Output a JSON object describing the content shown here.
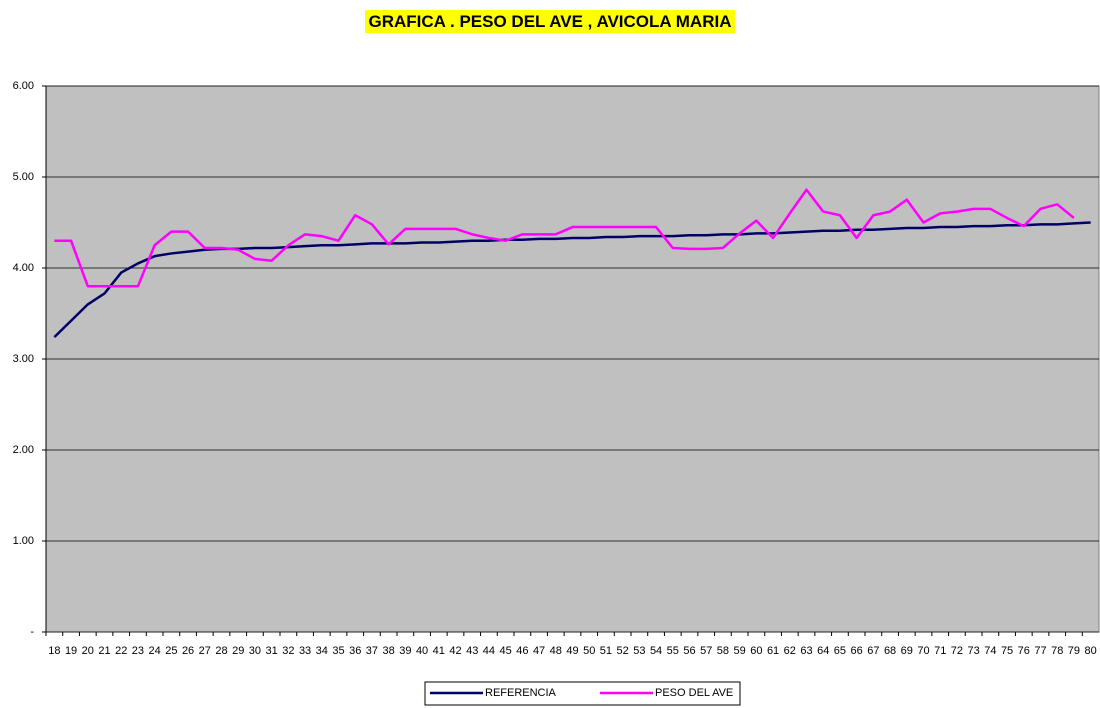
{
  "chart_data": {
    "type": "line",
    "title": "GRAFICA . PESO DEL AVE , AVICOLA MARIA",
    "categories": [
      "18",
      "19",
      "20",
      "21",
      "22",
      "23",
      "24",
      "25",
      "26",
      "27",
      "28",
      "29",
      "30",
      "31",
      "32",
      "33",
      "34",
      "35",
      "36",
      "37",
      "38",
      "39",
      "40",
      "41",
      "42",
      "43",
      "44",
      "45",
      "46",
      "47",
      "48",
      "49",
      "50",
      "51",
      "52",
      "53",
      "54",
      "55",
      "56",
      "57",
      "58",
      "59",
      "60",
      "61",
      "62",
      "63",
      "64",
      "65",
      "66",
      "67",
      "68",
      "69",
      "70",
      "71",
      "72",
      "73",
      "74",
      "75",
      "76",
      "77",
      "78",
      "79",
      "80"
    ],
    "series": [
      {
        "name": "REFERENCIA",
        "color": "#000066",
        "values": [
          3.24,
          3.42,
          3.6,
          3.72,
          3.95,
          4.05,
          4.13,
          4.16,
          4.18,
          4.2,
          4.21,
          4.21,
          4.22,
          4.22,
          4.23,
          4.24,
          4.25,
          4.25,
          4.26,
          4.27,
          4.27,
          4.27,
          4.28,
          4.28,
          4.29,
          4.3,
          4.3,
          4.31,
          4.31,
          4.32,
          4.32,
          4.33,
          4.33,
          4.34,
          4.34,
          4.35,
          4.35,
          4.35,
          4.36,
          4.36,
          4.37,
          4.37,
          4.38,
          4.38,
          4.39,
          4.4,
          4.41,
          4.41,
          4.42,
          4.42,
          4.43,
          4.44,
          4.44,
          4.45,
          4.45,
          4.46,
          4.46,
          4.47,
          4.47,
          4.48,
          4.48,
          4.49,
          4.5
        ]
      },
      {
        "name": "PESO DEL AVE",
        "color": "#ff00ff",
        "values": [
          4.3,
          4.3,
          3.8,
          3.8,
          3.8,
          3.8,
          4.25,
          4.4,
          4.4,
          4.22,
          4.22,
          4.2,
          4.1,
          4.08,
          4.25,
          4.37,
          4.35,
          4.3,
          4.58,
          4.48,
          4.26,
          4.43,
          4.43,
          4.43,
          4.43,
          4.37,
          4.33,
          4.3,
          4.37,
          4.37,
          4.37,
          4.45,
          4.45,
          4.45,
          4.45,
          4.45,
          4.45,
          4.22,
          4.21,
          4.21,
          4.22,
          4.38,
          4.52,
          4.33,
          4.6,
          4.86,
          4.62,
          4.58,
          4.33,
          4.58,
          4.62,
          4.75,
          4.5,
          4.6,
          4.62,
          4.65,
          4.65,
          4.55,
          4.46,
          4.65,
          4.7,
          4.55,
          null
        ]
      }
    ],
    "ylim": [
      0,
      6
    ],
    "yticks": [
      {
        "value": 0,
        "label": "-"
      },
      {
        "value": 1,
        "label": "1.00"
      },
      {
        "value": 2,
        "label": "2.00"
      },
      {
        "value": 3,
        "label": "3.00"
      },
      {
        "value": 4,
        "label": "4.00"
      },
      {
        "value": 5,
        "label": "5.00"
      },
      {
        "value": 6,
        "label": "6.00"
      }
    ],
    "grid": true
  }
}
